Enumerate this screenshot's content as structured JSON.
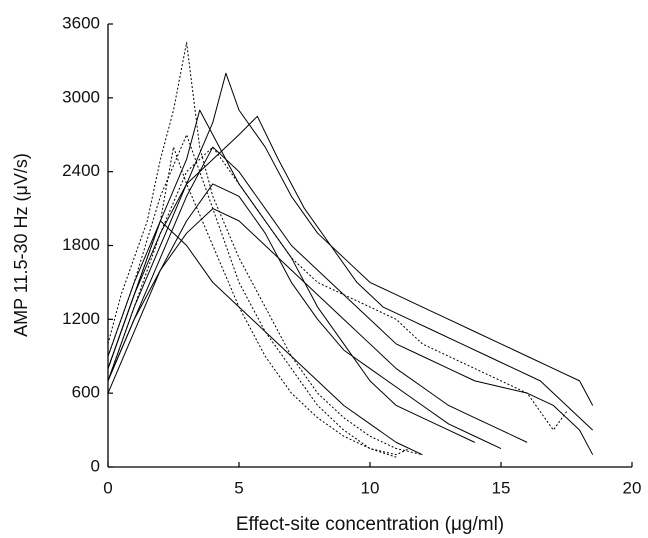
{
  "chart_data": {
    "type": "line",
    "xlabel": "Effect-site concentration (μg/ml)",
    "ylabel": "AMP 11.5-30 Hz (μV/s)",
    "xlim": [
      0,
      20
    ],
    "xticks": [
      0,
      5,
      10,
      15,
      20
    ],
    "ylim": [
      0,
      3600
    ],
    "yticks": [
      0,
      600,
      1200,
      1800,
      2400,
      3000,
      3600
    ],
    "series": [
      {
        "color": "#000000",
        "dash": false,
        "x": [
          0,
          1,
          2,
          3,
          4,
          4.5,
          5,
          6,
          7,
          8,
          9,
          10,
          11,
          12,
          13,
          14,
          15,
          16,
          17,
          18,
          18.5
        ],
        "values": [
          700,
          1300,
          1800,
          2300,
          2800,
          3200,
          2900,
          2600,
          2200,
          1900,
          1700,
          1500,
          1400,
          1300,
          1200,
          1100,
          1000,
          900,
          800,
          700,
          500
        ]
      },
      {
        "color": "#000000",
        "dash": false,
        "x": [
          0,
          1,
          2,
          3,
          4,
          5,
          5.7,
          6.5,
          7.5,
          8.5,
          9.5,
          10.5,
          11.5,
          12.5,
          13.5,
          14.5,
          15.5,
          16.5,
          17.5,
          18.5
        ],
        "values": [
          800,
          1400,
          1900,
          2300,
          2500,
          2700,
          2850,
          2500,
          2100,
          1800,
          1500,
          1300,
          1200,
          1100,
          1000,
          900,
          800,
          700,
          500,
          300
        ]
      },
      {
        "color": "#000000",
        "dash": false,
        "x": [
          0,
          1,
          2,
          3,
          4,
          5,
          6,
          7,
          8,
          9,
          10,
          11,
          12,
          13,
          14,
          15,
          16,
          17,
          18,
          18.5
        ],
        "values": [
          700,
          1200,
          1700,
          2200,
          2600,
          2400,
          2100,
          1800,
          1600,
          1400,
          1200,
          1000,
          900,
          800,
          700,
          650,
          600,
          500,
          300,
          100
        ]
      },
      {
        "color": "#000000",
        "dash": false,
        "x": [
          0,
          1,
          2,
          3,
          4,
          5,
          6,
          7,
          8,
          9,
          10,
          11,
          12,
          13,
          14,
          15
        ],
        "values": [
          600,
          1100,
          1600,
          2000,
          2300,
          2200,
          1900,
          1500,
          1200,
          950,
          800,
          650,
          500,
          350,
          250,
          150
        ]
      },
      {
        "color": "#000000",
        "dash": false,
        "x": [
          0,
          1,
          2,
          3,
          3.5,
          4,
          5,
          6,
          7,
          8,
          9,
          10,
          11,
          12,
          13,
          14
        ],
        "values": [
          900,
          1500,
          2000,
          2500,
          2900,
          2700,
          2300,
          2000,
          1700,
          1300,
          1000,
          700,
          500,
          400,
          300,
          200
        ]
      },
      {
        "color": "#000000",
        "dash": false,
        "x": [
          0,
          1,
          2,
          3,
          4,
          5,
          6,
          7,
          8,
          9,
          10,
          11,
          12,
          13,
          14,
          15,
          16
        ],
        "values": [
          700,
          1200,
          1600,
          1900,
          2100,
          2000,
          1800,
          1600,
          1400,
          1200,
          1000,
          800,
          650,
          500,
          400,
          300,
          200
        ]
      },
      {
        "color": "#000000",
        "dash": false,
        "x": [
          0,
          1,
          2,
          3,
          4,
          5,
          6,
          7,
          8,
          9,
          10,
          11,
          12
        ],
        "values": [
          800,
          1400,
          2000,
          1800,
          1500,
          1300,
          1100,
          900,
          700,
          500,
          350,
          200,
          100
        ]
      },
      {
        "color": "#000000",
        "dash": true,
        "x": [
          0,
          0.5,
          1,
          1.5,
          2,
          2.5,
          3,
          3.5,
          4,
          5,
          6,
          7,
          8,
          9,
          10,
          11,
          12
        ],
        "values": [
          1000,
          1400,
          1700,
          2000,
          2500,
          2900,
          3450,
          2600,
          2200,
          1700,
          1300,
          900,
          600,
          400,
          250,
          150,
          100
        ]
      },
      {
        "color": "#000000",
        "dash": true,
        "x": [
          0,
          1,
          2,
          3,
          4,
          5,
          6,
          7,
          8,
          9,
          10,
          11
        ],
        "values": [
          900,
          1500,
          2200,
          2700,
          2100,
          1500,
          1100,
          800,
          500,
          300,
          150,
          80
        ]
      },
      {
        "color": "#000000",
        "dash": true,
        "x": [
          0,
          1,
          2,
          2.5,
          3,
          4,
          5,
          6,
          7,
          8,
          9,
          10,
          11,
          11.5
        ],
        "values": [
          800,
          1400,
          2000,
          2600,
          2300,
          1800,
          1300,
          900,
          600,
          400,
          250,
          150,
          100,
          150
        ]
      },
      {
        "color": "#000000",
        "dash": true,
        "x": [
          0,
          1,
          2,
          3,
          4,
          5,
          6,
          7,
          8,
          9,
          10,
          11,
          12,
          13,
          14,
          15,
          16,
          17,
          17.5
        ],
        "values": [
          700,
          1300,
          1900,
          2400,
          2600,
          2300,
          2000,
          1700,
          1500,
          1400,
          1300,
          1200,
          1000,
          900,
          800,
          700,
          600,
          300,
          450
        ]
      }
    ]
  }
}
